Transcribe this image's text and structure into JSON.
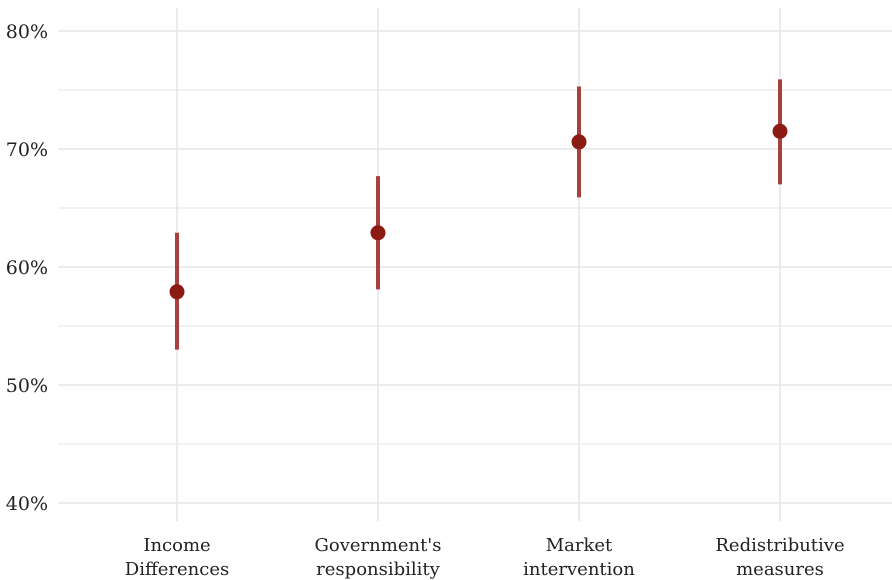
{
  "chart_data": {
    "type": "scatter",
    "title": "",
    "xlabel": "",
    "ylabel": "",
    "categories": [
      [
        "Income",
        "Differences"
      ],
      [
        "Government's",
        "responsibility"
      ],
      [
        "Market",
        "intervention"
      ],
      [
        "Redistributive",
        "measures"
      ]
    ],
    "values": [
      57.9,
      62.9,
      70.6,
      71.5
    ],
    "lower": [
      53.0,
      58.1,
      65.9,
      67.0
    ],
    "upper": [
      62.9,
      67.7,
      75.3,
      75.9
    ],
    "ylim": [
      40,
      80
    ],
    "yticks": [
      {
        "value": 40,
        "label": "40%"
      },
      {
        "value": 50,
        "label": "50%"
      },
      {
        "value": 60,
        "label": "60%"
      },
      {
        "value": 70,
        "label": "70%"
      },
      {
        "value": 80,
        "label": "80%"
      }
    ],
    "grid": true,
    "point_color": "#8b1a12",
    "errorbar_color": "#a84040",
    "grid_color": "#e6e6e6"
  }
}
